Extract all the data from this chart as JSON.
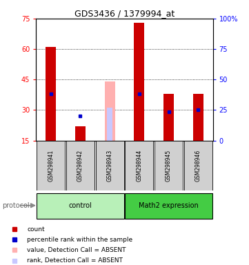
{
  "title": "GDS3436 / 1379994_at",
  "samples": [
    "GSM298941",
    "GSM298942",
    "GSM298943",
    "GSM298944",
    "GSM298945",
    "GSM298946"
  ],
  "red_bar_bottom": [
    15,
    15,
    15,
    15,
    15,
    15
  ],
  "red_bar_top": [
    61,
    22,
    15,
    73,
    38,
    38
  ],
  "blue_square_y": [
    38,
    27,
    null,
    38,
    29,
    30
  ],
  "pink_bar_bottom": [
    null,
    null,
    15,
    null,
    null,
    null
  ],
  "pink_bar_top": [
    null,
    null,
    44,
    null,
    null,
    null
  ],
  "lavender_bar_bottom": [
    null,
    null,
    15,
    null,
    null,
    null
  ],
  "lavender_bar_top": [
    null,
    null,
    31,
    null,
    null,
    null
  ],
  "absent": [
    false,
    false,
    true,
    false,
    false,
    false
  ],
  "ylim_left": [
    15,
    75
  ],
  "ylim_right": [
    0,
    100
  ],
  "yticks_left": [
    15,
    30,
    45,
    60,
    75
  ],
  "yticks_right": [
    0,
    25,
    50,
    75,
    100
  ],
  "ytick_labels_right": [
    "0",
    "25",
    "50",
    "75",
    "100%"
  ],
  "groups": [
    {
      "label": "control",
      "indices": [
        0,
        1,
        2
      ],
      "color": "#b8f0b8"
    },
    {
      "label": "Math2 expression",
      "indices": [
        3,
        4,
        5
      ],
      "color": "#44cc44"
    }
  ],
  "red_color": "#cc0000",
  "blue_color": "#0000cc",
  "pink_color": "#ffb0b0",
  "lavender_color": "#c8c8ff",
  "bar_width": 0.35,
  "background_color": "#ffffff",
  "plot_bg_color": "#ffffff",
  "sample_bg_color": "#d0d0d0",
  "legend_items": [
    {
      "color": "#cc0000",
      "label": "count"
    },
    {
      "color": "#0000cc",
      "label": "percentile rank within the sample"
    },
    {
      "color": "#ffb0b0",
      "label": "value, Detection Call = ABSENT"
    },
    {
      "color": "#c8c8ff",
      "label": "rank, Detection Call = ABSENT"
    }
  ]
}
